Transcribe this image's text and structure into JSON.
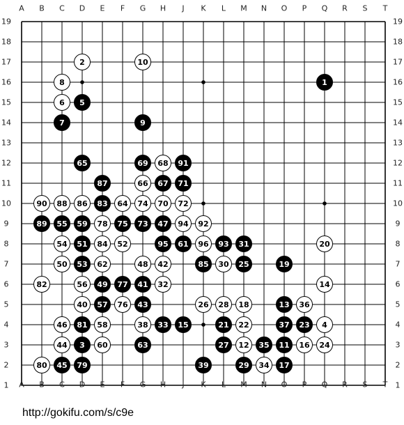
{
  "board": {
    "size": 19,
    "columns": [
      "A",
      "B",
      "C",
      "D",
      "E",
      "F",
      "G",
      "H",
      "J",
      "K",
      "L",
      "M",
      "N",
      "O",
      "P",
      "Q",
      "R",
      "S",
      "T"
    ],
    "rows": [
      "19",
      "18",
      "17",
      "16",
      "15",
      "14",
      "13",
      "12",
      "11",
      "10",
      "9",
      "8",
      "7",
      "6",
      "5",
      "4",
      "3",
      "2",
      "1"
    ],
    "hoshi": [
      "D16",
      "K16",
      "D10",
      "K10",
      "Q10",
      "D4",
      "K4",
      "Q4"
    ],
    "colors": {
      "line": "#000000",
      "black_stone": "#000000",
      "white_stone": "#ffffff",
      "board_bg": "#ffffff"
    },
    "stones": [
      {
        "n": "1",
        "c": "b",
        "p": "Q16"
      },
      {
        "n": "2",
        "c": "w",
        "p": "D17"
      },
      {
        "n": "3",
        "c": "b",
        "p": "D3"
      },
      {
        "n": "4",
        "c": "w",
        "p": "Q4"
      },
      {
        "n": "5",
        "c": "b",
        "p": "D15"
      },
      {
        "n": "6",
        "c": "w",
        "p": "C15"
      },
      {
        "n": "7",
        "c": "b",
        "p": "C14"
      },
      {
        "n": "8",
        "c": "w",
        "p": "C16"
      },
      {
        "n": "9",
        "c": "b",
        "p": "G14"
      },
      {
        "n": "10",
        "c": "w",
        "p": "G17"
      },
      {
        "n": "11",
        "c": "b",
        "p": "O3"
      },
      {
        "n": "12",
        "c": "w",
        "p": "M3"
      },
      {
        "n": "13",
        "c": "b",
        "p": "O5"
      },
      {
        "n": "14",
        "c": "w",
        "p": "Q6"
      },
      {
        "n": "15",
        "c": "b",
        "p": "J4"
      },
      {
        "n": "16",
        "c": "w",
        "p": "P3"
      },
      {
        "n": "17",
        "c": "b",
        "p": "O2"
      },
      {
        "n": "18",
        "c": "w",
        "p": "M5"
      },
      {
        "n": "19",
        "c": "b",
        "p": "O7"
      },
      {
        "n": "20",
        "c": "w",
        "p": "Q8"
      },
      {
        "n": "21",
        "c": "b",
        "p": "L4"
      },
      {
        "n": "22",
        "c": "w",
        "p": "M4"
      },
      {
        "n": "23",
        "c": "b",
        "p": "P4"
      },
      {
        "n": "24",
        "c": "w",
        "p": "Q3"
      },
      {
        "n": "25",
        "c": "b",
        "p": "M7"
      },
      {
        "n": "26",
        "c": "w",
        "p": "K5"
      },
      {
        "n": "27",
        "c": "b",
        "p": "L3"
      },
      {
        "n": "28",
        "c": "w",
        "p": "L5"
      },
      {
        "n": "29",
        "c": "b",
        "p": "M2"
      },
      {
        "n": "30",
        "c": "w",
        "p": "L7"
      },
      {
        "n": "31",
        "c": "b",
        "p": "M8"
      },
      {
        "n": "32",
        "c": "w",
        "p": "H6"
      },
      {
        "n": "33",
        "c": "b",
        "p": "H4"
      },
      {
        "n": "34",
        "c": "w",
        "p": "N2"
      },
      {
        "n": "35",
        "c": "b",
        "p": "N3"
      },
      {
        "n": "36",
        "c": "w",
        "p": "P5"
      },
      {
        "n": "37",
        "c": "b",
        "p": "O4"
      },
      {
        "n": "38",
        "c": "w",
        "p": "G4"
      },
      {
        "n": "39",
        "c": "b",
        "p": "K2"
      },
      {
        "n": "40",
        "c": "w",
        "p": "D5"
      },
      {
        "n": "41",
        "c": "b",
        "p": "G6"
      },
      {
        "n": "42",
        "c": "w",
        "p": "H7"
      },
      {
        "n": "43",
        "c": "b",
        "p": "G5"
      },
      {
        "n": "44",
        "c": "w",
        "p": "C3"
      },
      {
        "n": "45",
        "c": "b",
        "p": "C2"
      },
      {
        "n": "46",
        "c": "w",
        "p": "C4"
      },
      {
        "n": "47",
        "c": "b",
        "p": "H9"
      },
      {
        "n": "48",
        "c": "w",
        "p": "G7"
      },
      {
        "n": "49",
        "c": "b",
        "p": "E6"
      },
      {
        "n": "50",
        "c": "w",
        "p": "C7"
      },
      {
        "n": "51",
        "c": "b",
        "p": "D8"
      },
      {
        "n": "52",
        "c": "w",
        "p": "F8"
      },
      {
        "n": "53",
        "c": "b",
        "p": "D7"
      },
      {
        "n": "54",
        "c": "w",
        "p": "C8"
      },
      {
        "n": "55",
        "c": "b",
        "p": "C9"
      },
      {
        "n": "56",
        "c": "w",
        "p": "D6"
      },
      {
        "n": "57",
        "c": "b",
        "p": "E5"
      },
      {
        "n": "58",
        "c": "w",
        "p": "E4"
      },
      {
        "n": "59",
        "c": "b",
        "p": "D9"
      },
      {
        "n": "60",
        "c": "w",
        "p": "E3"
      },
      {
        "n": "61",
        "c": "b",
        "p": "J8"
      },
      {
        "n": "62",
        "c": "w",
        "p": "E7"
      },
      {
        "n": "63",
        "c": "b",
        "p": "G3"
      },
      {
        "n": "64",
        "c": "w",
        "p": "F10"
      },
      {
        "n": "65",
        "c": "b",
        "p": "D12"
      },
      {
        "n": "66",
        "c": "w",
        "p": "G11"
      },
      {
        "n": "67",
        "c": "b",
        "p": "H11"
      },
      {
        "n": "68",
        "c": "w",
        "p": "H12"
      },
      {
        "n": "69",
        "c": "b",
        "p": "G12"
      },
      {
        "n": "70",
        "c": "w",
        "p": "H10"
      },
      {
        "n": "71",
        "c": "b",
        "p": "J11"
      },
      {
        "n": "72",
        "c": "w",
        "p": "J10"
      },
      {
        "n": "73",
        "c": "b",
        "p": "G9"
      },
      {
        "n": "74",
        "c": "w",
        "p": "G10"
      },
      {
        "n": "75",
        "c": "b",
        "p": "F9"
      },
      {
        "n": "76",
        "c": "w",
        "p": "F5"
      },
      {
        "n": "77",
        "c": "b",
        "p": "F6"
      },
      {
        "n": "78",
        "c": "w",
        "p": "E9"
      },
      {
        "n": "79",
        "c": "b",
        "p": "D2"
      },
      {
        "n": "80",
        "c": "w",
        "p": "B2"
      },
      {
        "n": "81",
        "c": "b",
        "p": "D4"
      },
      {
        "n": "82",
        "c": "w",
        "p": "B6"
      },
      {
        "n": "83",
        "c": "b",
        "p": "E10"
      },
      {
        "n": "84",
        "c": "w",
        "p": "E8"
      },
      {
        "n": "85",
        "c": "b",
        "p": "K7"
      },
      {
        "n": "86",
        "c": "w",
        "p": "D10"
      },
      {
        "n": "87",
        "c": "b",
        "p": "E11"
      },
      {
        "n": "88",
        "c": "w",
        "p": "C10"
      },
      {
        "n": "89",
        "c": "b",
        "p": "B9"
      },
      {
        "n": "90",
        "c": "w",
        "p": "B10"
      },
      {
        "n": "91",
        "c": "b",
        "p": "J12"
      },
      {
        "n": "92",
        "c": "w",
        "p": "K9"
      },
      {
        "n": "93",
        "c": "b",
        "p": "L8"
      },
      {
        "n": "94",
        "c": "w",
        "p": "J9"
      },
      {
        "n": "95",
        "c": "b",
        "p": "H8"
      },
      {
        "n": "96",
        "c": "w",
        "p": "K8"
      }
    ]
  },
  "footer": {
    "url": "http://gokifu.com/s/c9e"
  }
}
